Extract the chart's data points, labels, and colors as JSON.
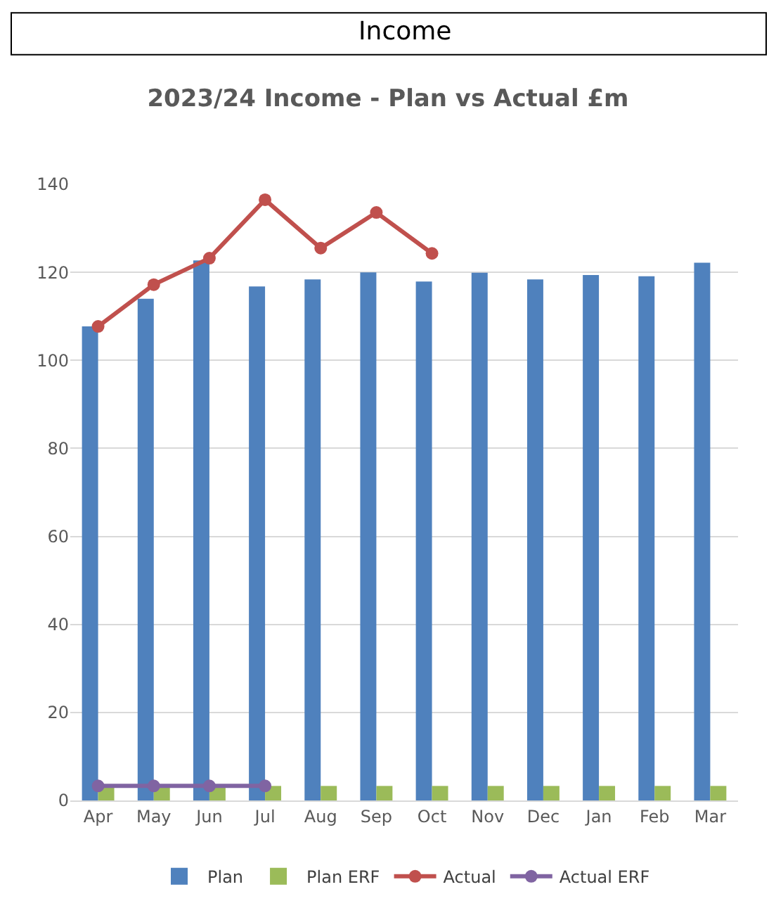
{
  "chart_data": {
    "type": "bar",
    "title": "2023/24 Income - Plan vs Actual £m",
    "annotations": [
      "Income"
    ],
    "categories": [
      "Apr",
      "May",
      "Jun",
      "Jul",
      "Aug",
      "Sep",
      "Oct",
      "Nov",
      "Dec",
      "Jan",
      "Feb",
      "Mar"
    ],
    "series": [
      {
        "name": "Plan",
        "color": "#4f81bd",
        "values": [
          107.7,
          114.0,
          122.7,
          116.8,
          118.4,
          120.0,
          117.9,
          119.9,
          118.4,
          119.4,
          119.1,
          122.2
        ]
      },
      {
        "name": "Plan ERF",
        "color": "#9bbb59",
        "values": [
          3.3,
          3.3,
          3.3,
          3.3,
          3.3,
          3.3,
          3.3,
          3.3,
          3.3,
          3.3,
          3.3,
          3.3
        ]
      },
      {
        "name": "Actual",
        "type": "line",
        "color": "#c0504d",
        "values": [
          107.7,
          117.2,
          123.2,
          136.5,
          125.5,
          133.6,
          124.3,
          null,
          null,
          null,
          null,
          null
        ]
      },
      {
        "name": "Actual ERF",
        "type": "line",
        "color": "#8064a2",
        "values": [
          3.3,
          3.3,
          3.3,
          3.3,
          null,
          null,
          null,
          null,
          null,
          null,
          null,
          null
        ]
      }
    ],
    "ylim": [
      0,
      140
    ],
    "yticks": [
      0,
      20,
      40,
      60,
      80,
      100,
      120,
      140
    ],
    "grid": "y",
    "legend": "bottom",
    "marker": "circle"
  }
}
